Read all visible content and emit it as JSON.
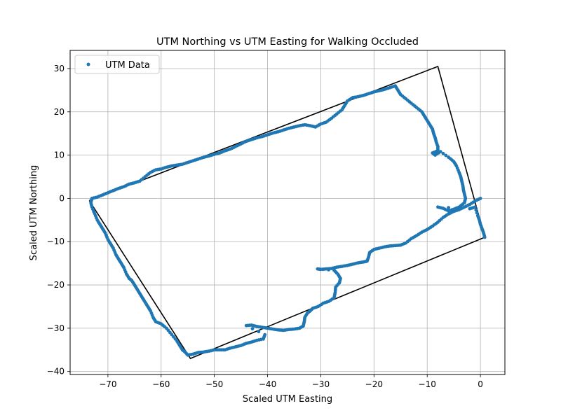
{
  "chart_data": {
    "type": "scatter",
    "title": "UTM Northing vs UTM Easting for Walking Occluded",
    "xlabel": "Scaled UTM Easting",
    "ylabel": "Scaled UTM Northing",
    "xlim": [
      -77.1,
      4.6
    ],
    "ylim": [
      -40.7,
      34.2
    ],
    "xticks": [
      -70,
      -60,
      -50,
      -40,
      -30,
      -20,
      -10,
      0
    ],
    "yticks": [
      -40,
      -30,
      -20,
      -10,
      0,
      10,
      20,
      30
    ],
    "xtick_labels": [
      "−70",
      "−60",
      "−50",
      "−40",
      "−30",
      "−20",
      "−10",
      "0"
    ],
    "ytick_labels": [
      "−40",
      "−30",
      "−20",
      "−10",
      "0",
      "10",
      "20",
      "30"
    ],
    "grid": true,
    "legend": {
      "placement": "top-left",
      "entries": [
        "UTM Data"
      ]
    },
    "colors": {
      "points": "#1f77b4",
      "outline": "#000000"
    },
    "series": [
      {
        "name": "UTM Data",
        "kind": "points",
        "path": [
          [
            0,
            0
          ],
          [
            -1,
            -0.6
          ],
          [
            -2,
            -1.4
          ],
          [
            -3,
            -2
          ],
          [
            -4,
            -2.6
          ],
          [
            -5,
            -3
          ],
          [
            -6,
            -3.6
          ],
          [
            -7,
            -4.4
          ],
          [
            -8,
            -5.5
          ],
          [
            -9,
            -6.4
          ],
          [
            -10,
            -7.2
          ],
          [
            -11,
            -7.8
          ],
          [
            -12,
            -8.6
          ],
          [
            -13,
            -9.3
          ],
          [
            -14,
            -10.3
          ],
          [
            -15,
            -10.8
          ],
          [
            -16,
            -10.9
          ],
          [
            -17,
            -11
          ],
          [
            -18,
            -11.2
          ],
          [
            -19,
            -11.5
          ],
          [
            -20,
            -11.8
          ],
          [
            -20.8,
            -12.5
          ],
          [
            -21,
            -13.5
          ],
          [
            -21.3,
            -14.5
          ],
          [
            -22,
            -14.7
          ],
          [
            -23,
            -14.9
          ],
          [
            -24,
            -15.2
          ],
          [
            -25,
            -15.5
          ],
          [
            -26,
            -15.7
          ],
          [
            -27,
            -15.9
          ],
          [
            -28,
            -16.2
          ],
          [
            -29,
            -16.3
          ],
          [
            -30,
            -16.4
          ],
          [
            -30.6,
            -16.3
          ],
          [
            -27.5,
            -16.6
          ],
          [
            -26.8,
            -17.5
          ],
          [
            -26.3,
            -18.5
          ],
          [
            -26.5,
            -19.5
          ],
          [
            -27.2,
            -20.5
          ],
          [
            -27.3,
            -21.8
          ],
          [
            -27.5,
            -23
          ],
          [
            -28.5,
            -23.8
          ],
          [
            -29.5,
            -24.2
          ],
          [
            -30.5,
            -25
          ],
          [
            -31.5,
            -25.4
          ],
          [
            -32,
            -26
          ],
          [
            -32.5,
            -26.5
          ],
          [
            -33,
            -27.5
          ],
          [
            -33.1,
            -28.5
          ],
          [
            -33.3,
            -29.5
          ],
          [
            -34,
            -30
          ],
          [
            -35,
            -30.2
          ],
          [
            -36,
            -30.3
          ],
          [
            -37,
            -30.5
          ],
          [
            -38,
            -30.4
          ],
          [
            -39,
            -30.2
          ],
          [
            -40,
            -30
          ],
          [
            -41,
            -29.8
          ],
          [
            -42,
            -29.6
          ],
          [
            -43,
            -29.3
          ],
          [
            -44,
            -29.4
          ],
          [
            -40.5,
            -31.5
          ],
          [
            -40.8,
            -32.5
          ],
          [
            -42,
            -32.8
          ],
          [
            -43,
            -33.2
          ],
          [
            -44,
            -33.5
          ],
          [
            -45,
            -34
          ],
          [
            -46,
            -34.3
          ],
          [
            -47,
            -34.6
          ],
          [
            -48,
            -35
          ],
          [
            -49,
            -35
          ],
          [
            -50,
            -35
          ],
          [
            -51,
            -35.3
          ],
          [
            -52,
            -35.5
          ],
          [
            -53,
            -35.6
          ],
          [
            -54,
            -36
          ],
          [
            -55,
            -36.2
          ],
          [
            -55.5,
            -35.5
          ],
          [
            -56,
            -35
          ],
          [
            -56.5,
            -34
          ],
          [
            -57,
            -33
          ],
          [
            -58,
            -31.5
          ],
          [
            -59,
            -30
          ],
          [
            -60,
            -29
          ],
          [
            -61,
            -28.5
          ],
          [
            -61.5,
            -27.5
          ],
          [
            -62,
            -26
          ],
          [
            -62.5,
            -25
          ],
          [
            -63,
            -24
          ],
          [
            -63.5,
            -23
          ],
          [
            -64,
            -22
          ],
          [
            -64.5,
            -21
          ],
          [
            -65,
            -20
          ],
          [
            -65.5,
            -19
          ],
          [
            -66,
            -18.5
          ],
          [
            -66.5,
            -17.5
          ],
          [
            -67,
            -16
          ],
          [
            -67.5,
            -15
          ],
          [
            -68,
            -14
          ],
          [
            -68.5,
            -13
          ],
          [
            -69,
            -11.5
          ],
          [
            -69.5,
            -10.5
          ],
          [
            -70,
            -9.5
          ],
          [
            -70.5,
            -8
          ],
          [
            -71,
            -7
          ],
          [
            -71.5,
            -6
          ],
          [
            -72,
            -5
          ],
          [
            -72.5,
            -3.5
          ],
          [
            -73,
            -2
          ],
          [
            -73.2,
            -1
          ],
          [
            -73,
            0
          ],
          [
            -72,
            0.3
          ],
          [
            -71,
            0.8
          ],
          [
            -70,
            1.3
          ],
          [
            -69,
            1.8
          ],
          [
            -68,
            2.3
          ],
          [
            -67,
            2.7
          ],
          [
            -66,
            3.3
          ],
          [
            -65,
            3.6
          ],
          [
            -64,
            4
          ],
          [
            -63,
            5
          ],
          [
            -62,
            6
          ],
          [
            -61,
            6.6
          ],
          [
            -60,
            6.8
          ],
          [
            -59,
            7.2
          ],
          [
            -58,
            7.5
          ],
          [
            -57,
            7.7
          ],
          [
            -56,
            7.9
          ],
          [
            -55,
            8.3
          ],
          [
            -54,
            8.7
          ],
          [
            -53,
            9.1
          ],
          [
            -52,
            9.5
          ],
          [
            -51,
            9.8
          ],
          [
            -50,
            10.2
          ],
          [
            -49,
            10.5
          ],
          [
            -48,
            11
          ],
          [
            -47,
            11.4
          ],
          [
            -46,
            12
          ],
          [
            -45,
            12.6
          ],
          [
            -44,
            13.2
          ],
          [
            -43,
            13.6
          ],
          [
            -42,
            14
          ],
          [
            -41,
            14.3
          ],
          [
            -40,
            14.7
          ],
          [
            -39,
            15.1
          ],
          [
            -38,
            15.4
          ],
          [
            -37,
            15.8
          ],
          [
            -36,
            16.2
          ],
          [
            -35,
            16.5
          ],
          [
            -34,
            16.8
          ],
          [
            -33,
            17
          ],
          [
            -32,
            16.8
          ],
          [
            -31,
            16.5
          ],
          [
            -30,
            17.2
          ],
          [
            -29,
            17.6
          ],
          [
            -28,
            18.5
          ],
          [
            -27,
            19.5
          ],
          [
            -26,
            20.5
          ],
          [
            -25.5,
            21.5
          ],
          [
            -25,
            22.5
          ],
          [
            -24,
            23.3
          ],
          [
            -23,
            23.5
          ],
          [
            -22,
            23.8
          ],
          [
            -21,
            24.2
          ],
          [
            -20,
            24.6
          ],
          [
            -19,
            24.9
          ],
          [
            -18,
            25.2
          ],
          [
            -17,
            25.6
          ],
          [
            -16,
            26
          ],
          [
            -15.5,
            25
          ],
          [
            -15,
            24
          ],
          [
            -14,
            23
          ],
          [
            -13,
            22
          ],
          [
            -12,
            21
          ],
          [
            -11,
            20
          ],
          [
            -10.5,
            19
          ],
          [
            -10,
            18
          ],
          [
            -9.5,
            17
          ],
          [
            -9,
            16
          ],
          [
            -8.8,
            15
          ],
          [
            -8.5,
            14
          ],
          [
            -8.3,
            13
          ],
          [
            -8,
            12
          ],
          [
            -8,
            11
          ],
          [
            -9,
            10.5
          ],
          [
            -8.5,
            10
          ],
          [
            -7.5,
            10.8
          ],
          [
            -6,
            9.5
          ],
          [
            -5,
            8.5
          ],
          [
            -4.5,
            7.5
          ],
          [
            -4,
            6
          ],
          [
            -3.7,
            5
          ],
          [
            -3.5,
            4
          ],
          [
            -3.3,
            3
          ],
          [
            -3.2,
            2
          ],
          [
            -3,
            1
          ],
          [
            -2.8,
            0
          ],
          [
            -3,
            -1
          ],
          [
            -4,
            -2
          ],
          [
            -5,
            -2.5
          ],
          [
            -6,
            -2.9
          ],
          [
            -7,
            -2.3
          ],
          [
            -8,
            -2
          ],
          [
            -2,
            -2.4
          ],
          [
            -1,
            -2
          ],
          [
            -0.5,
            -4
          ],
          [
            -0.2,
            -5
          ],
          [
            0,
            -6
          ],
          [
            0.3,
            -7
          ],
          [
            0.6,
            -8
          ],
          [
            0.8,
            -9
          ]
        ]
      },
      {
        "name": "",
        "kind": "line",
        "points": [
          [
            -73.5,
            -0.5
          ],
          [
            -8,
            30.5
          ],
          [
            0.8,
            -9
          ],
          [
            -54.5,
            -37
          ],
          [
            -73.5,
            -0.5
          ]
        ]
      }
    ]
  }
}
